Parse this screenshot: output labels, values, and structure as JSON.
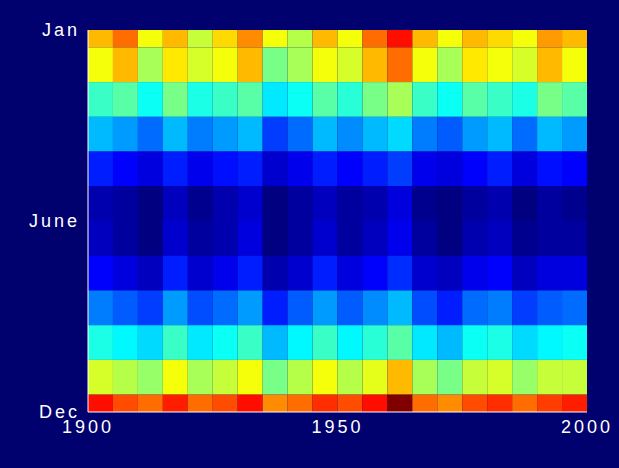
{
  "chart_data": {
    "type": "heatmap",
    "x": [
      1902.5,
      1907.5,
      1912.5,
      1917.5,
      1922.5,
      1927.5,
      1932.5,
      1937.5,
      1942.5,
      1947.5,
      1952.5,
      1957.5,
      1962.5,
      1967.5,
      1972.5,
      1977.5,
      1982.5,
      1987.5,
      1992.5,
      1997.5
    ],
    "y": [
      1,
      2,
      3,
      4,
      5,
      6,
      7,
      8,
      9,
      10,
      11,
      12
    ],
    "cells": [
      [
        0.55,
        0.6,
        0.5,
        0.55,
        0.47,
        0.53,
        0.58,
        0.5,
        0.46,
        0.55,
        0.5,
        0.6,
        0.66,
        0.55,
        0.5,
        0.55,
        0.53,
        0.5,
        0.57,
        0.55
      ],
      [
        0.5,
        0.55,
        0.45,
        0.52,
        0.48,
        0.5,
        0.55,
        0.42,
        0.45,
        0.5,
        0.48,
        0.55,
        0.6,
        0.5,
        0.45,
        0.52,
        0.5,
        0.48,
        0.55,
        0.5
      ],
      [
        0.38,
        0.4,
        0.35,
        0.42,
        0.36,
        0.38,
        0.4,
        0.33,
        0.35,
        0.4,
        0.37,
        0.42,
        0.45,
        0.38,
        0.35,
        0.4,
        0.38,
        0.36,
        0.42,
        0.4
      ],
      [
        0.3,
        0.28,
        0.25,
        0.3,
        0.26,
        0.28,
        0.3,
        0.22,
        0.25,
        0.3,
        0.27,
        0.3,
        0.32,
        0.26,
        0.24,
        0.28,
        0.3,
        0.25,
        0.3,
        0.28
      ],
      [
        0.2,
        0.18,
        0.16,
        0.2,
        0.17,
        0.19,
        0.2,
        0.15,
        0.17,
        0.2,
        0.18,
        0.2,
        0.22,
        0.17,
        0.16,
        0.18,
        0.2,
        0.16,
        0.19,
        0.18
      ],
      [
        0.13,
        0.12,
        0.1,
        0.14,
        0.11,
        0.13,
        0.15,
        0.1,
        0.12,
        0.14,
        0.12,
        0.13,
        0.16,
        0.11,
        0.1,
        0.12,
        0.13,
        0.1,
        0.12,
        0.11
      ],
      [
        0.14,
        0.12,
        0.1,
        0.15,
        0.12,
        0.13,
        0.16,
        0.1,
        0.12,
        0.15,
        0.12,
        0.14,
        0.17,
        0.12,
        0.1,
        0.13,
        0.14,
        0.11,
        0.12,
        0.12
      ],
      [
        0.18,
        0.16,
        0.14,
        0.2,
        0.15,
        0.17,
        0.2,
        0.13,
        0.15,
        0.2,
        0.16,
        0.18,
        0.21,
        0.15,
        0.14,
        0.17,
        0.18,
        0.14,
        0.16,
        0.16
      ],
      [
        0.26,
        0.24,
        0.22,
        0.28,
        0.23,
        0.25,
        0.28,
        0.2,
        0.24,
        0.28,
        0.24,
        0.27,
        0.3,
        0.23,
        0.2,
        0.25,
        0.26,
        0.22,
        0.24,
        0.25
      ],
      [
        0.36,
        0.34,
        0.32,
        0.38,
        0.33,
        0.35,
        0.38,
        0.3,
        0.34,
        0.38,
        0.34,
        0.37,
        0.4,
        0.33,
        0.3,
        0.35,
        0.36,
        0.32,
        0.34,
        0.35
      ],
      [
        0.48,
        0.46,
        0.44,
        0.5,
        0.45,
        0.47,
        0.5,
        0.42,
        0.46,
        0.5,
        0.46,
        0.49,
        0.55,
        0.45,
        0.42,
        0.47,
        0.48,
        0.44,
        0.47,
        0.47
      ],
      [
        0.66,
        0.62,
        0.6,
        0.65,
        0.6,
        0.62,
        0.66,
        0.58,
        0.6,
        0.64,
        0.62,
        0.66,
        0.75,
        0.6,
        0.58,
        0.62,
        0.64,
        0.6,
        0.63,
        0.65
      ]
    ],
    "xlim": [
      1900,
      2000
    ],
    "xticks": [
      1900,
      1950,
      2000
    ],
    "ylim": [
      1,
      12
    ],
    "yticks": [
      {
        "value": 1,
        "label": "Jan"
      },
      {
        "value": 6.5,
        "label": "June"
      },
      {
        "value": 12,
        "label": "Dec"
      }
    ]
  }
}
